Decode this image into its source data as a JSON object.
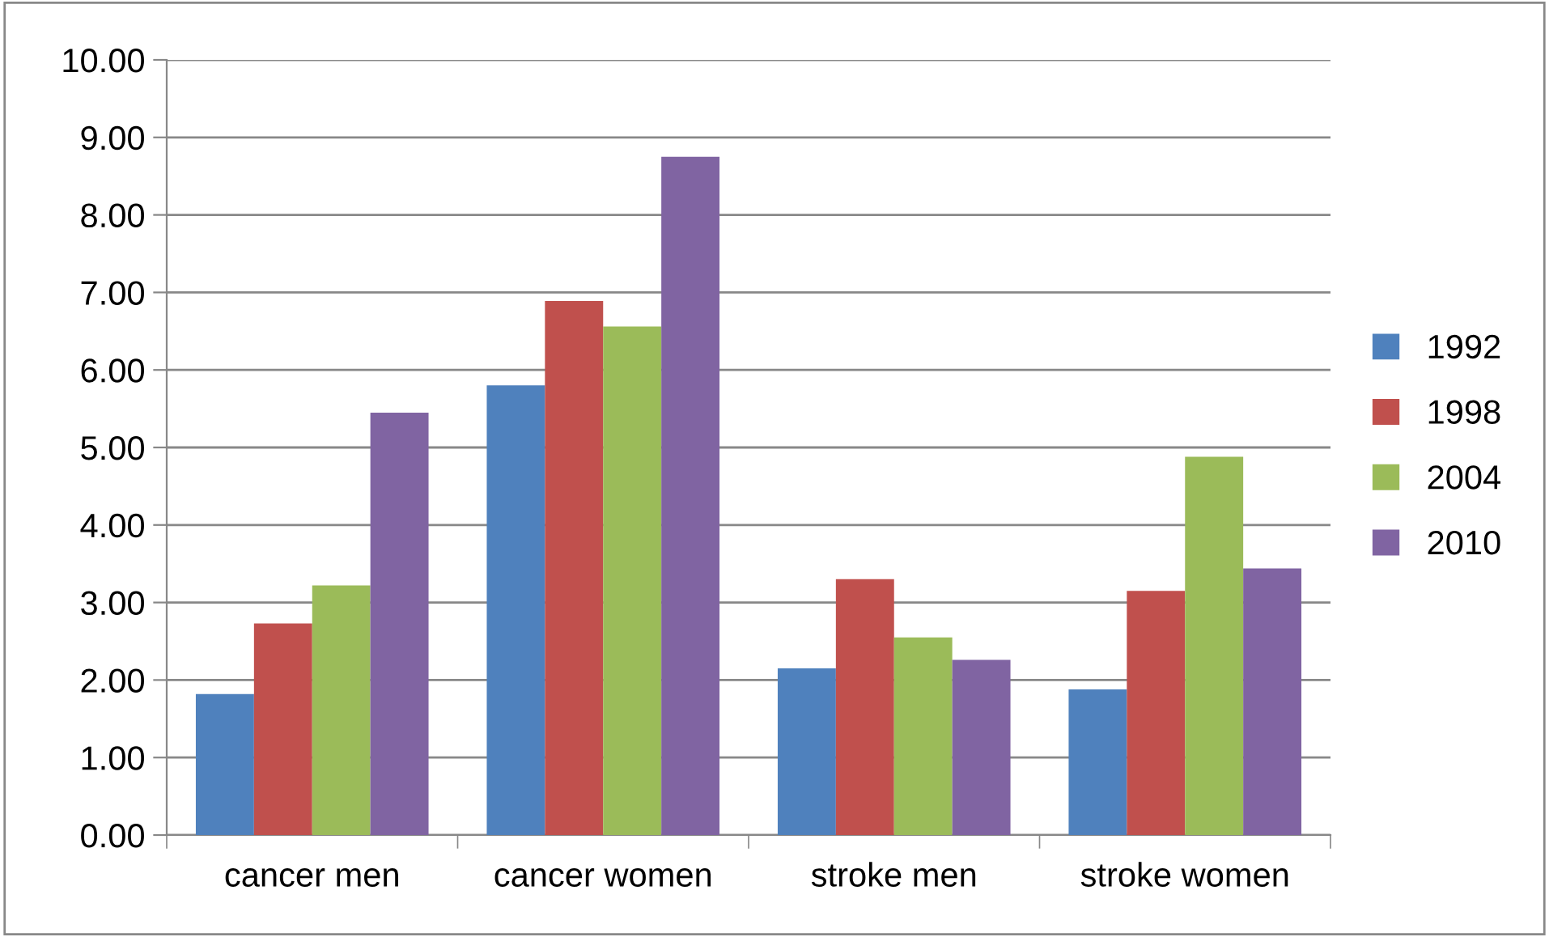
{
  "chart_data": {
    "type": "bar",
    "categories": [
      "cancer men",
      "cancer women",
      "stroke men",
      "stroke women"
    ],
    "series": [
      {
        "name": "1992",
        "color": "#4f81bd",
        "values": [
          1.82,
          5.8,
          2.15,
          1.88
        ]
      },
      {
        "name": "1998",
        "color": "#c0504d",
        "values": [
          2.73,
          6.89,
          3.3,
          3.15
        ]
      },
      {
        "name": "2004",
        "color": "#9bbb59",
        "values": [
          3.22,
          6.56,
          2.55,
          4.88
        ]
      },
      {
        "name": "2010",
        "color": "#8064a2",
        "values": [
          5.45,
          8.75,
          2.26,
          3.44
        ]
      }
    ],
    "ylim": [
      0,
      10
    ],
    "yticks": [
      {
        "value": 0,
        "label": "0.00"
      },
      {
        "value": 1,
        "label": "1.00"
      },
      {
        "value": 2,
        "label": "2.00"
      },
      {
        "value": 3,
        "label": "3.00"
      },
      {
        "value": 4,
        "label": "4.00"
      },
      {
        "value": 5,
        "label": "5.00"
      },
      {
        "value": 6,
        "label": "6.00"
      },
      {
        "value": 7,
        "label": "7.00"
      },
      {
        "value": 8,
        "label": "8.00"
      },
      {
        "value": 9,
        "label": "9.00"
      },
      {
        "value": 10,
        "label": "10.00"
      }
    ],
    "grid": "y",
    "legend": "right"
  }
}
